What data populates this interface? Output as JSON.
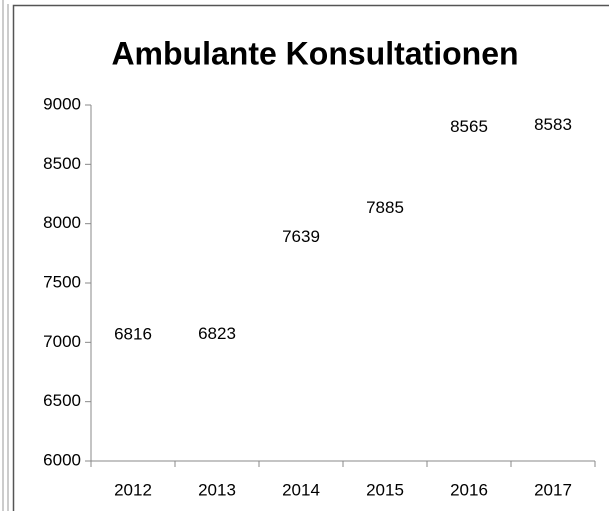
{
  "chart_data": {
    "type": "line",
    "title": "Ambulante Konsultationen",
    "categories": [
      "2012",
      "2013",
      "2014",
      "2015",
      "2016",
      "2017"
    ],
    "series": [
      {
        "name": "Ambulante Konsultationen",
        "color": "#4a7ebb",
        "values": [
          6816,
          6823,
          7639,
          7885,
          8565,
          8583
        ]
      }
    ],
    "ylim": [
      6000,
      9000
    ],
    "yticks": [
      6000,
      6500,
      7000,
      7500,
      8000,
      8500,
      9000
    ],
    "grid": false
  }
}
